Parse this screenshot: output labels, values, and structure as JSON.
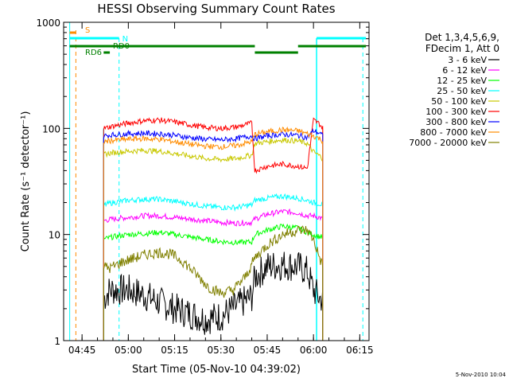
{
  "chart_data": {
    "type": "line",
    "title": "HESSI Observing Summary Count Rates",
    "xlabel": "Start Time (05-Nov-10 04:39:02)",
    "ylabel": "Count Rate (s⁻¹ detector⁻¹)",
    "yscale": "log",
    "ylim": [
      1,
      1000
    ],
    "xlim": [
      "04:39:02",
      "06:18:00"
    ],
    "x_ticks": [
      "04:45",
      "05:00",
      "05:15",
      "05:30",
      "05:45",
      "06:00",
      "06:15"
    ],
    "y_ticks": [
      "1",
      "10",
      "100",
      "1000"
    ],
    "legend_title": [
      "Det 1,3,4,5,6,9,",
      "FDecim 1, Att 0"
    ],
    "legend_placement": "right, outside plot",
    "grid": false,
    "series": [
      {
        "name": "3 - 6 keV",
        "color": "#000000",
        "x": [
          "04:52",
          "04:54",
          "05:00",
          "05:05",
          "05:10",
          "05:15",
          "05:20",
          "05:25",
          "05:30",
          "05:35",
          "05:40",
          "05:41",
          "05:45",
          "05:50",
          "05:55",
          "05:58",
          "06:00",
          "06:02",
          "06:03"
        ],
        "y": [
          2.5,
          3,
          3,
          2.7,
          2.3,
          2,
          1.8,
          1.6,
          1.7,
          2.1,
          2.6,
          4,
          5,
          5.2,
          5,
          4.5,
          3,
          2.5,
          2.5
        ]
      },
      {
        "name": "6 - 12 keV",
        "color": "#ff00ff",
        "x": [
          "04:52",
          "04:55",
          "05:00",
          "05:05",
          "05:10",
          "05:15",
          "05:20",
          "05:25",
          "05:30",
          "05:35",
          "05:40",
          "05:41",
          "05:45",
          "05:50",
          "05:55",
          "05:58",
          "06:00",
          "06:02",
          "06:03"
        ],
        "y": [
          13.5,
          14,
          14.5,
          15,
          15,
          14.5,
          14,
          13.5,
          13,
          12.8,
          13,
          14,
          15.5,
          16.5,
          16,
          15,
          15,
          14.5,
          14
        ]
      },
      {
        "name": "12 - 25 keV",
        "color": "#00ff00",
        "x": [
          "04:52",
          "04:55",
          "05:00",
          "05:05",
          "05:10",
          "05:15",
          "05:20",
          "05:25",
          "05:30",
          "05:35",
          "05:40",
          "05:41",
          "05:45",
          "05:50",
          "05:55",
          "05:58",
          "06:00",
          "06:02",
          "06:03"
        ],
        "y": [
          9,
          9.5,
          10,
          10.2,
          10.5,
          10,
          9.5,
          9,
          8.6,
          8.4,
          8.5,
          10,
          11,
          12,
          11.5,
          10.5,
          10,
          9.5,
          9.5
        ]
      },
      {
        "name": "25 - 50 keV",
        "color": "#00ffff",
        "x": [
          "04:52",
          "04:55",
          "05:00",
          "05:05",
          "05:10",
          "05:15",
          "05:20",
          "05:25",
          "05:30",
          "05:35",
          "05:40",
          "05:41",
          "05:45",
          "05:50",
          "05:55",
          "05:58",
          "06:00",
          "06:02",
          "06:03"
        ],
        "y": [
          19,
          20,
          21,
          21.5,
          21.5,
          20.5,
          19.5,
          18.5,
          18,
          18,
          19,
          21,
          22,
          23,
          22,
          21,
          20,
          19.5,
          19
        ]
      },
      {
        "name": "50 - 100 keV",
        "color": "#c8c800",
        "x": [
          "04:52",
          "04:55",
          "05:00",
          "05:05",
          "05:10",
          "05:15",
          "05:20",
          "05:25",
          "05:30",
          "05:35",
          "05:40",
          "05:41",
          "05:45",
          "05:50",
          "05:55",
          "05:58",
          "06:00",
          "06:02",
          "06:03"
        ],
        "y": [
          57,
          59,
          61,
          62,
          61,
          58,
          55,
          52,
          51,
          52,
          56,
          72,
          75,
          78,
          76,
          72,
          60,
          55,
          52
        ]
      },
      {
        "name": "100 - 300 keV",
        "color": "#ff0000",
        "x": [
          "04:52",
          "04:55",
          "05:00",
          "05:05",
          "05:10",
          "05:15",
          "05:20",
          "05:25",
          "05:30",
          "05:35",
          "05:40",
          "05:41",
          "05:45",
          "05:50",
          "05:55",
          "05:58",
          "06:00",
          "06:02",
          "06:03"
        ],
        "y": [
          100,
          105,
          112,
          118,
          120,
          115,
          108,
          102,
          100,
          103,
          112,
          40,
          44,
          46,
          44,
          42,
          120,
          110,
          100
        ]
      },
      {
        "name": "300 - 800 keV",
        "color": "#0000ff",
        "x": [
          "04:52",
          "04:55",
          "05:00",
          "05:05",
          "05:10",
          "05:15",
          "05:20",
          "05:25",
          "05:30",
          "05:35",
          "05:40",
          "05:41",
          "05:45",
          "05:50",
          "05:55",
          "05:58",
          "06:00",
          "06:02",
          "06:03"
        ],
        "y": [
          85,
          87,
          89,
          90,
          89,
          86,
          82,
          79,
          78,
          80,
          85,
          80,
          85,
          88,
          86,
          82,
          95,
          90,
          85
        ]
      },
      {
        "name": "800 - 7000 keV",
        "color": "#ff8c00",
        "x": [
          "04:52",
          "04:55",
          "05:00",
          "05:05",
          "05:10",
          "05:15",
          "05:20",
          "05:25",
          "05:30",
          "05:35",
          "05:40",
          "05:41",
          "05:45",
          "05:50",
          "05:55",
          "05:58",
          "06:00",
          "06:02",
          "06:03"
        ],
        "y": [
          75,
          77,
          79,
          80,
          79,
          75,
          71,
          68,
          67,
          69,
          75,
          88,
          93,
          97,
          95,
          89,
          85,
          80,
          76
        ]
      },
      {
        "name": "7000 - 20000 keV",
        "color": "#808000",
        "x": [
          "04:52",
          "04:54",
          "04:58",
          "05:02",
          "05:06",
          "05:10",
          "05:14",
          "05:18",
          "05:22",
          "05:26",
          "05:30",
          "05:34",
          "05:38",
          "05:41",
          "05:45",
          "05:50",
          "05:55",
          "05:58",
          "06:00",
          "06:02",
          "06:03"
        ],
        "y": [
          5,
          4.8,
          5.5,
          6,
          6.5,
          6.8,
          6.5,
          5.5,
          4.2,
          3.2,
          2.8,
          3,
          4,
          6,
          8,
          10,
          11,
          11,
          9,
          6,
          5
        ]
      }
    ],
    "attenuator_flags": [
      {
        "label": "S",
        "color": "#ff8c00"
      },
      {
        "label": "N",
        "color": "#00ffff"
      },
      {
        "label": "RD6",
        "color": "#008000"
      },
      {
        "label": "RD0",
        "color": "#008000"
      }
    ],
    "footer_date": "5-Nov-2010 10:04"
  }
}
